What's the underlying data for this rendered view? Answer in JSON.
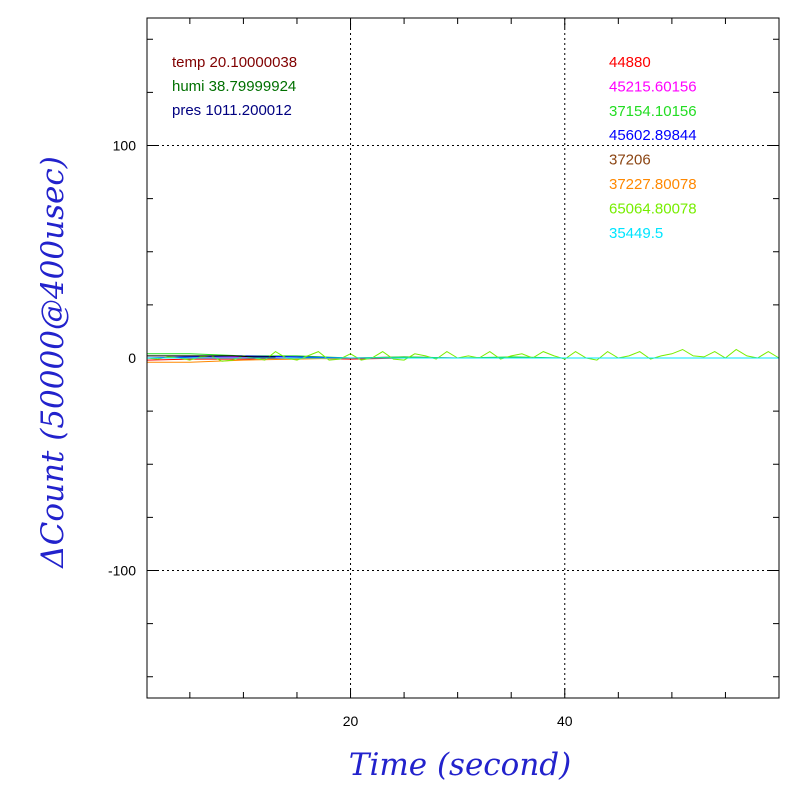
{
  "chart_data": {
    "type": "line",
    "title": "",
    "xlabel": "Time (second)",
    "ylabel": "ΔCount (50000@400usec)",
    "xlim": [
      1,
      60
    ],
    "ylim": [
      -160,
      160
    ],
    "xticks": [
      20,
      40
    ],
    "yticks": [
      -100,
      0,
      100
    ],
    "xtick_labels": [
      "20",
      "40"
    ],
    "ytick_labels": [
      "-100",
      "0",
      "100"
    ],
    "grid": true,
    "env_readings": [
      {
        "text": "temp 20.10000038",
        "color": "#800000"
      },
      {
        "text": "humi 38.79999924",
        "color": "#007000"
      },
      {
        "text": "pres 1011.200012",
        "color": "#000080"
      }
    ],
    "channel_labels": [
      {
        "text": "44880",
        "color": "#ff0000"
      },
      {
        "text": "45215.60156",
        "color": "#ff00ff"
      },
      {
        "text": "37154.10156",
        "color": "#22dd22"
      },
      {
        "text": "45602.89844",
        "color": "#0000ff"
      },
      {
        "text": "37206",
        "color": "#8b4513"
      },
      {
        "text": "37227.80078",
        "color": "#ff8800"
      },
      {
        "text": "65064.80078",
        "color": "#77ee00"
      },
      {
        "text": "35449.5",
        "color": "#00e5ff"
      }
    ],
    "series": [
      {
        "color": "#ff0000",
        "x": [
          1,
          5,
          10,
          15,
          20,
          25,
          30,
          35,
          40,
          45,
          50,
          55,
          60
        ],
        "y": [
          -1,
          -0.5,
          -0.5,
          0,
          -0.5,
          0,
          0,
          0,
          0,
          0,
          0,
          0,
          0
        ]
      },
      {
        "color": "#ff00ff",
        "x": [
          1,
          5,
          10,
          15,
          20,
          25,
          30,
          35,
          40,
          45,
          50,
          55,
          60
        ],
        "y": [
          0,
          0,
          0.5,
          0,
          0,
          0.5,
          0,
          0,
          0,
          0,
          0,
          0,
          0
        ]
      },
      {
        "color": "#22dd22",
        "x": [
          1,
          5,
          10,
          15,
          20,
          25,
          30,
          35,
          40,
          45,
          50,
          55,
          60
        ],
        "y": [
          2,
          2,
          1,
          1,
          0,
          0.5,
          0,
          0.5,
          0,
          0,
          0,
          0,
          0
        ]
      },
      {
        "color": "#0000ff",
        "x": [
          1,
          5,
          10,
          15,
          20,
          25,
          30,
          35,
          40,
          45,
          50,
          55,
          60
        ],
        "y": [
          0,
          0.5,
          1,
          0.5,
          0,
          0,
          0,
          0,
          0,
          0,
          0,
          0,
          0
        ]
      },
      {
        "color": "#8b4513",
        "x": [
          1,
          5,
          10,
          15,
          20,
          25,
          30,
          35,
          40,
          45,
          50,
          55,
          60
        ],
        "y": [
          0,
          0,
          0,
          0,
          0,
          0,
          0,
          0,
          0,
          0,
          0,
          0,
          0
        ]
      },
      {
        "color": "#ff8800",
        "x": [
          1,
          5,
          10,
          15,
          20,
          25,
          30,
          35,
          40,
          45,
          50,
          55,
          60
        ],
        "y": [
          -2,
          -2,
          -1,
          -0.5,
          0,
          0,
          0,
          0,
          0,
          0,
          0,
          0,
          0
        ]
      },
      {
        "color": "#77ee00",
        "x": [
          1,
          2,
          3,
          4,
          5,
          6,
          7,
          8,
          9,
          10,
          11,
          12,
          13,
          14,
          15,
          16,
          17,
          18,
          19,
          20,
          21,
          22,
          23,
          24,
          25,
          26,
          27,
          28,
          29,
          30,
          31,
          32,
          33,
          34,
          35,
          36,
          37,
          38,
          39,
          40,
          41,
          42,
          43,
          44,
          45,
          46,
          47,
          48,
          49,
          50,
          51,
          52,
          53,
          54,
          55,
          56,
          57,
          58,
          59,
          60
        ],
        "y": [
          0,
          -0.5,
          0.5,
          0,
          -1,
          0.5,
          1,
          -1.5,
          -1,
          1,
          0,
          -1,
          3,
          0,
          -1,
          1,
          3,
          -1,
          -0.5,
          2,
          -1,
          0,
          3,
          -0.5,
          -1,
          2,
          1,
          -0.5,
          3,
          0,
          1,
          0,
          3,
          -0.5,
          1,
          2,
          0,
          3,
          1,
          -0.5,
          3,
          0,
          -1,
          3,
          0,
          1,
          3,
          -0.5,
          1,
          2,
          4,
          1,
          0.5,
          3,
          0,
          4,
          1,
          0,
          3,
          0
        ]
      },
      {
        "color": "#00e5ff",
        "x": [
          1,
          5,
          10,
          15,
          20,
          25,
          30,
          35,
          40,
          45,
          50,
          55,
          60
        ],
        "y": [
          0,
          0,
          0,
          0,
          0,
          0,
          0,
          0,
          0,
          0,
          0,
          0,
          0
        ]
      },
      {
        "color": "#000000",
        "x": [
          1,
          3,
          5,
          7,
          9,
          11,
          13
        ],
        "y": [
          1,
          1,
          1,
          1,
          1,
          0.5,
          0.5
        ]
      }
    ]
  }
}
